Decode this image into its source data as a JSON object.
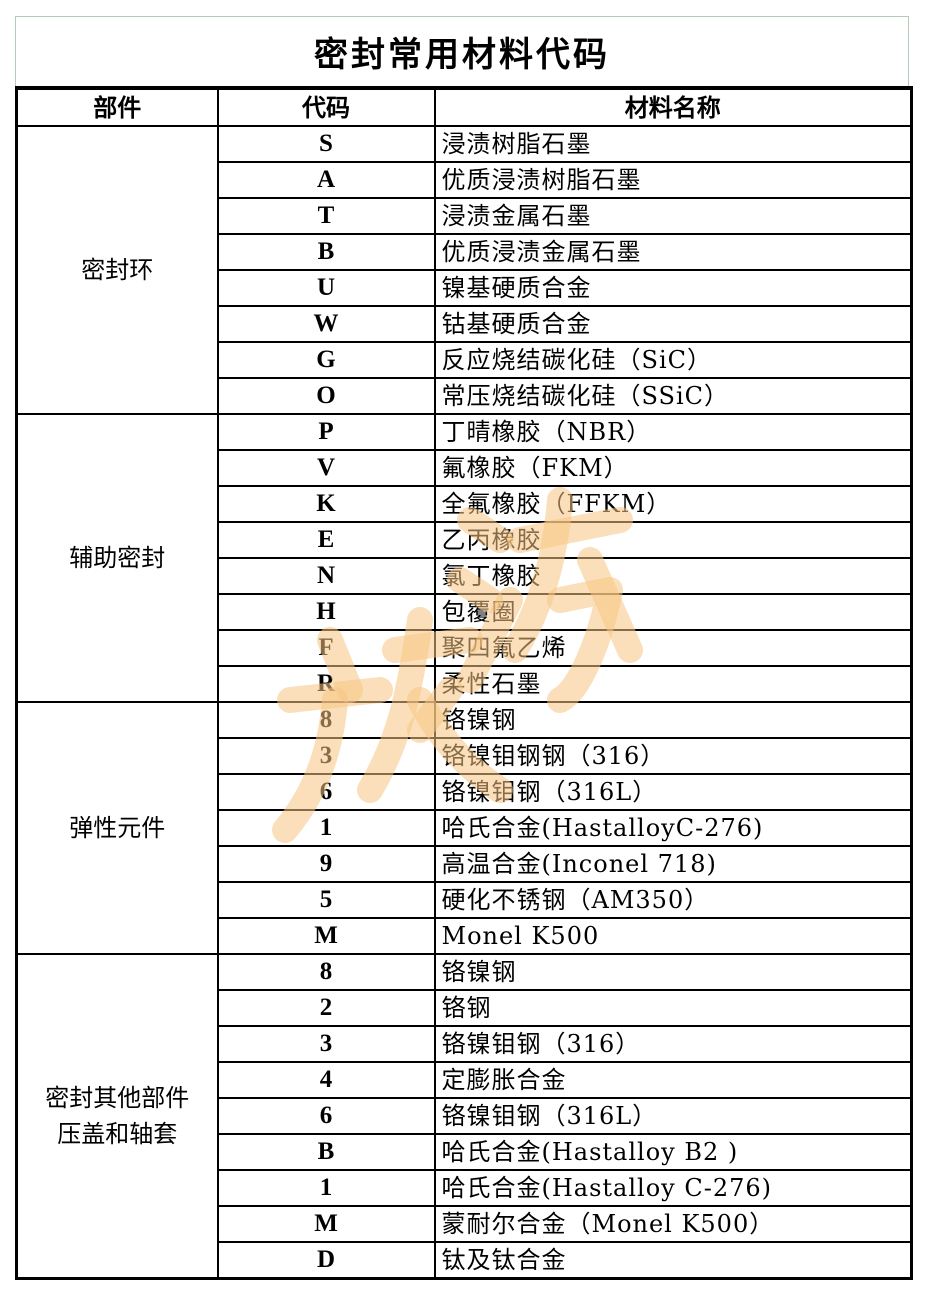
{
  "title": "密封常用材料代码",
  "headers": {
    "part": "部件",
    "code": "代码",
    "name": "材料名称"
  },
  "groups": [
    {
      "part": "密封环",
      "rows": [
        {
          "code": "S",
          "name": "浸渍树脂石墨"
        },
        {
          "code": "A",
          "name": "优质浸渍树脂石墨"
        },
        {
          "code": "T",
          "name": "浸渍金属石墨"
        },
        {
          "code": "B",
          "name": "优质浸渍金属石墨"
        },
        {
          "code": "U",
          "name": "镍基硬质合金"
        },
        {
          "code": "W",
          "name": "钴基硬质合金"
        },
        {
          "code": "G",
          "name": "反应烧结碳化硅（SiC）"
        },
        {
          "code": "O",
          "name": "常压烧结碳化硅（SSiC）"
        }
      ]
    },
    {
      "part": "辅助密封",
      "rows": [
        {
          "code": "P",
          "name": "丁晴橡胶（NBR）"
        },
        {
          "code": "V",
          "name": "氟橡胶（FKM）"
        },
        {
          "code": "K",
          "name": "全氟橡胶（FFKM）"
        },
        {
          "code": "E",
          "name": "乙丙橡胶"
        },
        {
          "code": "N",
          "name": "氯丁橡胶"
        },
        {
          "code": "H",
          "name": "包覆圈"
        },
        {
          "code": "F",
          "name": "聚四氟乙烯"
        },
        {
          "code": "R",
          "name": "柔性石墨"
        }
      ]
    },
    {
      "part": "弹性元件",
      "rows": [
        {
          "code": "8",
          "name": "铬镍钢"
        },
        {
          "code": "3",
          "name": "铬镍钼钢钢（316）"
        },
        {
          "code": "6",
          "name": "铬镍钼钢（316L）"
        },
        {
          "code": "1",
          "name": "哈氏合金(HastalloyC-276)"
        },
        {
          "code": "9",
          "name": "高温合金(Inconel 718)"
        },
        {
          "code": "5",
          "name": "硬化不锈钢（AM350）"
        },
        {
          "code": "M",
          "name": "Monel K500"
        }
      ]
    },
    {
      "part_line1": "密封其他部件",
      "part_line2": "压盖和轴套",
      "rows": [
        {
          "code": "8",
          "name": "铬镍钢"
        },
        {
          "code": "2",
          "name": "铬钢"
        },
        {
          "code": "3",
          "name": "铬镍钼钢（316）"
        },
        {
          "code": "4",
          "name": "定膨胀合金"
        },
        {
          "code": "6",
          "name": "铬镍钼钢（316L）"
        },
        {
          "code": "B",
          "name": "哈氏合金(Hastalloy B2 )"
        },
        {
          "code": "1",
          "name": "哈氏合金(Hastalloy C-276)"
        },
        {
          "code": "M",
          "name": "蒙耐尔合金（Monel K500）"
        },
        {
          "code": "D",
          "name": "钛及钛合金"
        }
      ]
    }
  ],
  "watermark": {
    "text": "旅游",
    "color": "#f6c482"
  }
}
